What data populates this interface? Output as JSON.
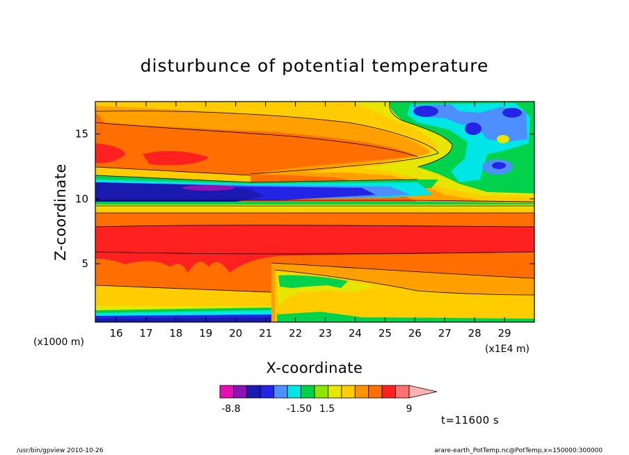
{
  "chart_data": {
    "type": "heatmap",
    "title": "disturbunce of potential temperature",
    "xlabel": "X-coordinate",
    "ylabel": "Z-coordinate",
    "x_unit": "(x1E4 m)",
    "y_unit": "(x1000 m)",
    "xlim": [
      15.3,
      30.0
    ],
    "ylim": [
      0.5,
      17.5
    ],
    "x_ticks": [
      "16",
      "17",
      "18",
      "19",
      "20",
      "21",
      "22",
      "23",
      "24",
      "25",
      "26",
      "27",
      "28",
      "29"
    ],
    "y_ticks": [
      "5",
      "10",
      "15"
    ],
    "x_tick_values": [
      16,
      17,
      18,
      19,
      20,
      21,
      22,
      23,
      24,
      25,
      26,
      27,
      28,
      29
    ],
    "y_tick_values": [
      5,
      10,
      15
    ],
    "colorbar": {
      "colors": [
        "#e60eb5",
        "#8c14b4",
        "#1a1ab0",
        "#2424e6",
        "#4d8fff",
        "#00e6e6",
        "#00d24c",
        "#8ce600",
        "#e6e600",
        "#ffcc00",
        "#ff9400",
        "#ff6e00",
        "#ff2020",
        "#ff7070",
        "#ffb0b0"
      ],
      "tick_labels": [
        "-8.8",
        "-1.50",
        "1.5",
        "9"
      ],
      "tick_values": [
        -8.8,
        -1.5,
        1.5,
        9
      ]
    },
    "time_label": "t=11600 s"
  },
  "footer": {
    "left": "/usr/bin/gpview   2010-10-26",
    "right": "arare-earth_PotTemp.nc@PotTemp,x=150000:300000"
  }
}
